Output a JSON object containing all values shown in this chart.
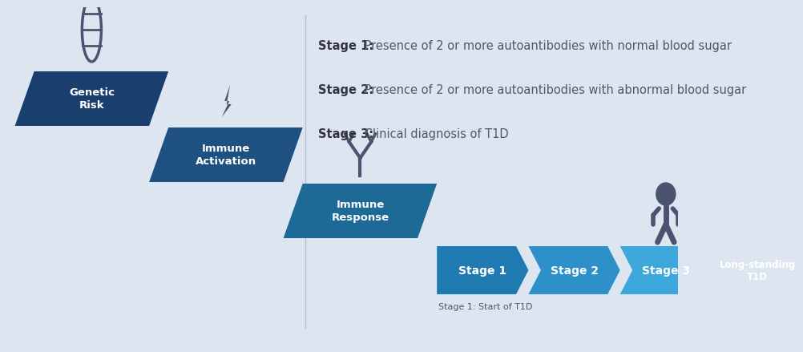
{
  "bg_color": "#dde6f0",
  "stair_dark1": "#1a3f6f",
  "stair_dark2": "#1e5080",
  "stair_mid": "#1e6a96",
  "flat1": "#1e7ab0",
  "flat2": "#2e90c8",
  "flat3": "#3ea8dc",
  "flat4": "#4ebcee",
  "icon_color": "#4a5470",
  "white": "#ffffff",
  "dark_text": "#333344",
  "mid_text": "#555566",
  "stage_labels": [
    "Stage 1",
    "Stage 2",
    "Stage 3",
    "Long-standing\nT1D"
  ],
  "stair_labels": [
    "Genetic\nRisk",
    "Immune\nActivation",
    "Immune\nResponse"
  ],
  "desc_bold": [
    "Stage 1:",
    "Stage 2:",
    "Stage 3:"
  ],
  "desc_rest": [
    " Presence of 2 or more autoantibodies with normal blood sugar",
    " Presence of 2 or more autoantibodies with abnormal blood sugar",
    " Clinical diagnosis of T1D"
  ],
  "footnote": "Stage 1: Start of T1D"
}
